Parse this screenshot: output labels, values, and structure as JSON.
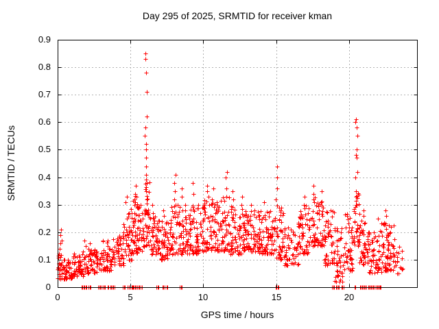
{
  "chart_data": {
    "type": "scatter",
    "title": "Day 295 of 2025, SRMTID for receiver kman",
    "xlabel": "GPS time / hours",
    "ylabel": "SRMTID / TECUs",
    "xlim": [
      0,
      24.66
    ],
    "ylim": [
      0,
      0.9
    ],
    "xticks": {
      "values": [
        0,
        5,
        10,
        15,
        20
      ],
      "labels": [
        "0",
        "5",
        "10",
        "15",
        "20"
      ]
    },
    "yticks": {
      "values": [
        0,
        0.1,
        0.2,
        0.3,
        0.4,
        0.5,
        0.6,
        0.7,
        0.8,
        0.9
      ],
      "labels": [
        "0",
        "0.1",
        "0.2",
        "0.3",
        "0.4",
        "0.5",
        "0.6",
        "0.7",
        "0.8",
        "0.9"
      ]
    },
    "grid": true,
    "legend": "none",
    "marker": {
      "shape": "plus",
      "size": 7,
      "color": "#ff0000"
    },
    "colors": {
      "background": "#ffffff",
      "axis": "#000000",
      "text": "#000000",
      "grid": "#b0b0b0"
    },
    "description": "Dense red plus-marker scatter of SRMTID vs GPS time; baseline band ~0.05-0.25 TECUs all day, major spike to 0.85 near 06:00, spike to 0.61 near 20:30, many exact-zero samples along the x-axis.",
    "spike_columns": [
      {
        "x": 0.2,
        "values": [
          0.21,
          0.19,
          0.17,
          0.16,
          0.14
        ]
      },
      {
        "x": 1.9,
        "values": [
          0.17,
          0.15
        ]
      },
      {
        "x": 2.2,
        "values": [
          0.16,
          0.14
        ]
      },
      {
        "x": 3.5,
        "values": [
          0.17,
          0.15
        ]
      },
      {
        "x": 4.7,
        "values": [
          0.33,
          0.31
        ]
      },
      {
        "x": 5.3,
        "values": [
          0.37,
          0.34,
          0.32,
          0.3,
          0.27
        ]
      },
      {
        "x": 5.45,
        "values": [
          0.33,
          0.29
        ]
      },
      {
        "x": 6.05,
        "values": [
          0.85,
          0.83,
          0.78,
          0.71,
          0.62,
          0.58,
          0.55,
          0.52,
          0.5,
          0.47,
          0.44,
          0.41,
          0.38,
          0.35,
          0.32,
          0.28
        ]
      },
      {
        "x": 6.5,
        "values": [
          0.3,
          0.27
        ]
      },
      {
        "x": 7.3,
        "values": [
          0.28,
          0.26
        ]
      },
      {
        "x": 8.05,
        "values": [
          0.41,
          0.38,
          0.35,
          0.32
        ]
      },
      {
        "x": 8.5,
        "values": [
          0.36,
          0.33
        ]
      },
      {
        "x": 9.3,
        "values": [
          0.38,
          0.34
        ]
      },
      {
        "x": 10.3,
        "values": [
          0.37,
          0.35,
          0.33
        ]
      },
      {
        "x": 10.65,
        "values": [
          0.36,
          0.32
        ]
      },
      {
        "x": 11.55,
        "values": [
          0.42,
          0.4,
          0.36,
          0.33
        ]
      },
      {
        "x": 12.0,
        "values": [
          0.35,
          0.32
        ]
      },
      {
        "x": 12.6,
        "values": [
          0.33,
          0.3
        ]
      },
      {
        "x": 13.3,
        "values": [
          0.3
        ]
      },
      {
        "x": 14.2,
        "values": [
          0.31
        ]
      },
      {
        "x": 15.05,
        "values": [
          0.44,
          0.4,
          0.36,
          0.32
        ]
      },
      {
        "x": 16.9,
        "values": [
          0.33,
          0.3
        ]
      },
      {
        "x": 17.6,
        "values": [
          0.37,
          0.34,
          0.31
        ]
      },
      {
        "x": 18.1,
        "values": [
          0.35,
          0.31
        ]
      },
      {
        "x": 19.15,
        "values": [
          0.12,
          0.09,
          0.06,
          0.04,
          0.02
        ]
      },
      {
        "x": 20.5,
        "values": [
          0.61,
          0.6,
          0.58,
          0.55,
          0.5,
          0.48,
          0.47,
          0.42,
          0.4,
          0.35,
          0.33,
          0.3
        ]
      },
      {
        "x": 21.0,
        "values": [
          0.28,
          0.26
        ]
      },
      {
        "x": 21.9,
        "values": [
          0.25
        ]
      },
      {
        "x": 22.5,
        "values": [
          0.28,
          0.26
        ]
      }
    ],
    "zero_clusters": [
      [
        1.75,
        4
      ],
      [
        1.95,
        2
      ],
      [
        2.2,
        3
      ],
      [
        2.9,
        4
      ],
      [
        3.2,
        3
      ],
      [
        3.45,
        2
      ],
      [
        3.75,
        5
      ],
      [
        4.55,
        3
      ],
      [
        4.85,
        2
      ],
      [
        5.1,
        4
      ],
      [
        5.3,
        5
      ],
      [
        5.55,
        3
      ],
      [
        5.75,
        2
      ],
      [
        6.85,
        3
      ],
      [
        7.25,
        3
      ],
      [
        7.5,
        2
      ],
      [
        8.45,
        3
      ],
      [
        15.05,
        4
      ],
      [
        18.9,
        3
      ],
      [
        19.2,
        4
      ],
      [
        19.55,
        3
      ],
      [
        20.4,
        2
      ],
      [
        20.85,
        4
      ],
      [
        21.1,
        3
      ],
      [
        21.45,
        5
      ],
      [
        21.7,
        2
      ],
      [
        21.95,
        4
      ],
      [
        22.15,
        2
      ]
    ],
    "band_spec": [
      [
        0.0,
        0.35,
        25,
        0.03,
        0.14
      ],
      [
        0.35,
        1.0,
        45,
        0.03,
        0.1
      ],
      [
        1.0,
        2.0,
        60,
        0.04,
        0.13
      ],
      [
        2.0,
        3.0,
        60,
        0.05,
        0.14
      ],
      [
        3.0,
        3.8,
        50,
        0.06,
        0.17
      ],
      [
        3.8,
        4.5,
        45,
        0.08,
        0.19
      ],
      [
        4.5,
        5.1,
        45,
        0.1,
        0.3
      ],
      [
        5.1,
        5.5,
        35,
        0.12,
        0.34
      ],
      [
        5.5,
        6.0,
        40,
        0.13,
        0.3
      ],
      [
        6.0,
        6.3,
        30,
        0.15,
        0.4
      ],
      [
        6.3,
        7.0,
        50,
        0.12,
        0.26
      ],
      [
        7.0,
        7.6,
        45,
        0.1,
        0.24
      ],
      [
        7.6,
        8.4,
        55,
        0.12,
        0.3
      ],
      [
        8.4,
        9.2,
        55,
        0.12,
        0.3
      ],
      [
        9.2,
        10.0,
        60,
        0.12,
        0.3
      ],
      [
        10.0,
        10.8,
        60,
        0.13,
        0.32
      ],
      [
        10.8,
        11.8,
        70,
        0.13,
        0.33
      ],
      [
        11.8,
        12.8,
        70,
        0.12,
        0.3
      ],
      [
        12.8,
        13.8,
        70,
        0.13,
        0.28
      ],
      [
        13.8,
        14.8,
        70,
        0.12,
        0.28
      ],
      [
        14.8,
        15.5,
        50,
        0.1,
        0.3
      ],
      [
        15.5,
        16.5,
        55,
        0.08,
        0.22
      ],
      [
        16.5,
        17.2,
        50,
        0.12,
        0.3
      ],
      [
        17.2,
        18.3,
        70,
        0.15,
        0.33
      ],
      [
        18.3,
        19.0,
        50,
        0.08,
        0.28
      ],
      [
        19.0,
        19.6,
        35,
        0.02,
        0.22
      ],
      [
        19.6,
        20.3,
        45,
        0.06,
        0.28
      ],
      [
        20.3,
        20.7,
        35,
        0.15,
        0.35
      ],
      [
        20.7,
        21.3,
        45,
        0.08,
        0.25
      ],
      [
        21.3,
        22.2,
        55,
        0.05,
        0.22
      ],
      [
        22.2,
        23.1,
        70,
        0.06,
        0.24
      ],
      [
        23.1,
        23.7,
        20,
        0.05,
        0.15
      ]
    ],
    "seed": 42
  }
}
